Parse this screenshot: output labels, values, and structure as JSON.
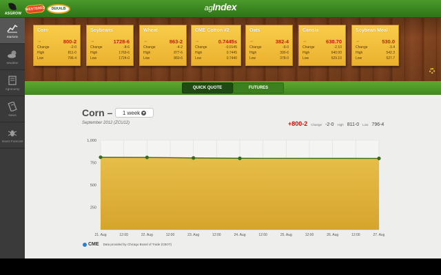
{
  "header": {
    "title_prefix": "ag",
    "title_main": "Index",
    "logos": [
      {
        "name": "asgrow-logo",
        "text": "ASGROW"
      },
      {
        "name": "wheat-logo",
        "text": "WESTBRED"
      },
      {
        "name": "dekalb-logo",
        "text": "DEKALB"
      }
    ]
  },
  "sidebar": {
    "items": [
      {
        "label": "Markets",
        "icon": "chart-icon",
        "active": true
      },
      {
        "label": "Weather",
        "icon": "weather-icon",
        "active": false
      },
      {
        "label": "Agronomy",
        "icon": "book-icon",
        "active": false
      },
      {
        "label": "News",
        "icon": "news-icon",
        "active": false
      },
      {
        "label": "Insect Forecast",
        "icon": "bug-icon",
        "active": false
      }
    ]
  },
  "cards": [
    {
      "name": "Corn",
      "price": "800-2",
      "change": "-2-0",
      "high": "811-0",
      "low": "796-4"
    },
    {
      "name": "Soybeans",
      "price": "1728-6",
      "change": "-8-6",
      "high": "1769-6",
      "low": "1724-0"
    },
    {
      "name": "Wheat",
      "price": "863-2",
      "change": "-4-2",
      "high": "877-6",
      "low": "860-6"
    },
    {
      "name": "CME Cotton #2",
      "price": "0.7445s",
      "change": "-0.0145",
      "high": "0.7445",
      "low": "0.7440"
    },
    {
      "name": "Oats",
      "price": "382-4",
      "change": "-6-0",
      "high": "390-6",
      "low": "378-0"
    },
    {
      "name": "Canola",
      "price": "630.70",
      "change": "-2.10",
      "high": "640.00",
      "low": "629.10"
    },
    {
      "name": "Soybean Meal",
      "price": "530.0",
      "change": "-3.4",
      "high": "542.3",
      "low": "527.7"
    }
  ],
  "card_labels": {
    "change": "Change",
    "high": "High",
    "low": "Low",
    "arrow": "→"
  },
  "tabs": [
    {
      "label": "QUICK QUOTE",
      "active": true
    },
    {
      "label": "FUTURES",
      "active": false
    }
  ],
  "detail": {
    "title": "Corn –",
    "period": "1 week",
    "subtitle": "September 2012 (ZCU12)",
    "price": "+800-2",
    "change_label": "Change",
    "change": "-2-0",
    "high_label": "High",
    "high": "811-0",
    "low_label": "Low",
    "low": "796-4"
  },
  "footer": {
    "cme": "CME",
    "note": "Data provided by Chicago Board of Trade (CBOT)"
  },
  "colors": {
    "accent_green": "#3f8a1e",
    "card_gold": "#f1c232",
    "price_red": "#c8140a",
    "area_fill": "#e0b43c",
    "line_green": "#3e6b22"
  },
  "chart_data": {
    "type": "area",
    "x": [
      "21. Aug",
      "22. Aug",
      "23. Aug",
      "24. Aug",
      "27. Aug"
    ],
    "values": [
      810,
      808,
      802,
      798,
      797
    ],
    "xticks": [
      "21. Aug",
      "12:00",
      "22. Aug",
      "12:00",
      "23. Aug",
      "12:00",
      "24. Aug",
      "12:00",
      "25. Aug",
      "12:00",
      "26. Aug",
      "12:00",
      "27. Aug"
    ],
    "yticks": [
      "250",
      "500",
      "750",
      "1,000"
    ],
    "ylim": [
      0,
      1000
    ],
    "grid": true,
    "title": "",
    "xlabel": "",
    "ylabel": ""
  }
}
